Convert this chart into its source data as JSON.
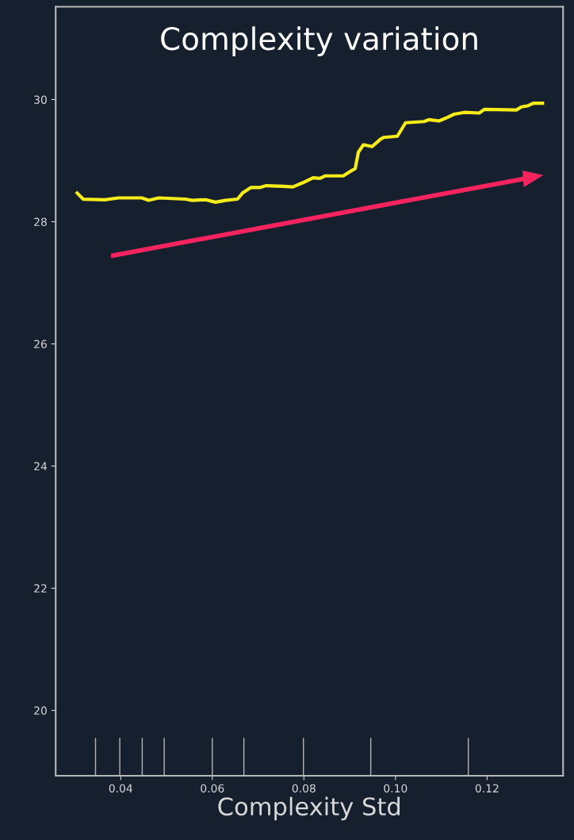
{
  "chart_data": {
    "type": "line",
    "title": "Complexity variation",
    "xlabel": "Complexity Std",
    "xlim": [
      0.0258,
      0.1366
    ],
    "xticks": [
      {
        "value": 0.04,
        "label": "0.04"
      },
      {
        "value": 0.06,
        "label": "0.06"
      },
      {
        "value": 0.08,
        "label": "0.08"
      },
      {
        "value": 0.1,
        "label": "0.10"
      },
      {
        "value": 0.12,
        "label": "0.12"
      }
    ],
    "ylim": [
      18.93,
      31.52
    ],
    "yticks": [
      20,
      22,
      24,
      26,
      28,
      30
    ],
    "grid": false,
    "series": [
      {
        "color": "#f5ec1a",
        "x": [
          0.0305,
          0.0318,
          0.0365,
          0.0395,
          0.0446,
          0.0461,
          0.0483,
          0.0541,
          0.0556,
          0.0585,
          0.0607,
          0.0629,
          0.0655,
          0.0666,
          0.0684,
          0.0703,
          0.0718,
          0.0754,
          0.0776,
          0.0798,
          0.082,
          0.0835,
          0.0846,
          0.0886,
          0.0905,
          0.0912,
          0.0919,
          0.093,
          0.0949,
          0.0967,
          0.0974,
          0.1004,
          0.1022,
          0.1062,
          0.1073,
          0.1095,
          0.1114,
          0.1128,
          0.115,
          0.1183,
          0.1194,
          0.1264,
          0.1275,
          0.129,
          0.1301,
          0.1321
        ],
        "values": [
          28.47,
          28.37,
          28.36,
          28.39,
          28.39,
          28.35,
          28.39,
          28.37,
          28.35,
          28.36,
          28.32,
          28.35,
          28.37,
          28.47,
          28.56,
          28.56,
          28.59,
          28.58,
          28.57,
          28.64,
          28.72,
          28.71,
          28.75,
          28.75,
          28.84,
          28.87,
          29.14,
          29.26,
          29.23,
          29.35,
          29.38,
          29.4,
          29.62,
          29.64,
          29.67,
          29.65,
          29.71,
          29.76,
          29.79,
          29.78,
          29.84,
          29.83,
          29.88,
          29.9,
          29.94,
          29.94
        ]
      },
      {
        "type": "bar",
        "color": "#b0b0b0",
        "x": [
          0.0345,
          0.0398,
          0.0447,
          0.0495,
          0.06,
          0.0669,
          0.0799,
          0.0946,
          0.1159
        ],
        "base": [
          18.93,
          18.93,
          18.93,
          18.93,
          18.93,
          18.93,
          18.93,
          18.93,
          18.93
        ],
        "values": [
          0.62,
          0.62,
          0.62,
          0.62,
          0.62,
          0.62,
          0.62,
          0.62,
          0.62
        ]
      }
    ]
  }
}
